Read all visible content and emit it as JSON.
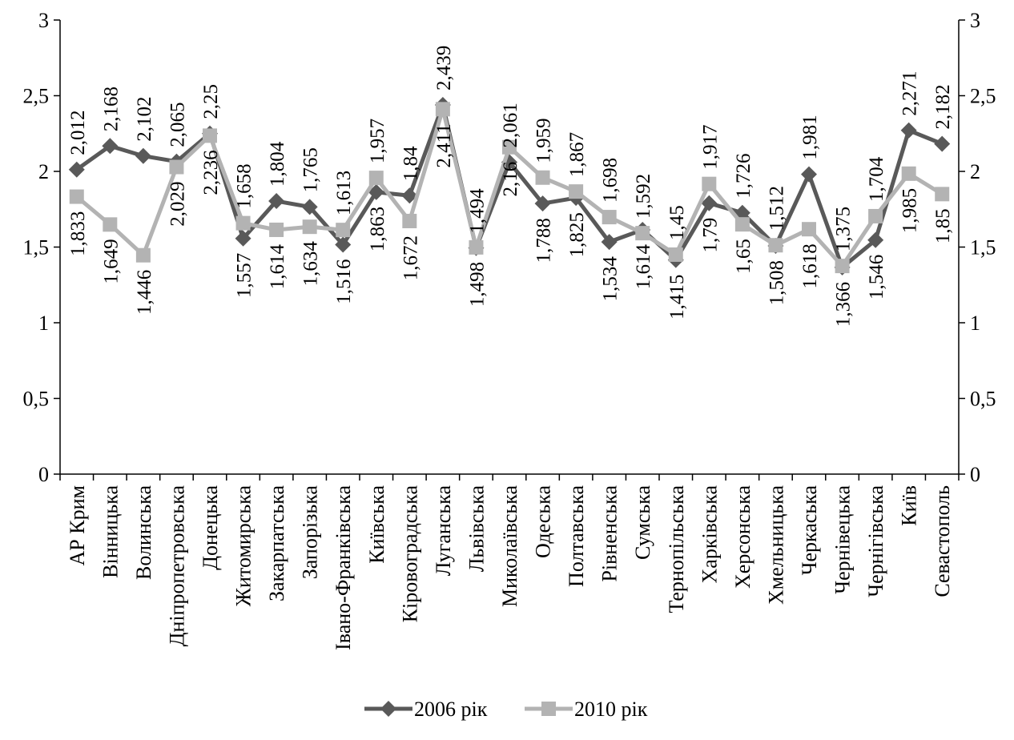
{
  "chart_data": {
    "type": "line",
    "title": "",
    "xlabel": "",
    "ylabel": "",
    "ylim": [
      0,
      3
    ],
    "yticks": [
      "0",
      "0,5",
      "1",
      "1,5",
      "2",
      "2,5",
      "3"
    ],
    "y2ticks": [
      "0",
      "0,5",
      "1",
      "1,5",
      "2",
      "2,5",
      "3"
    ],
    "grid": false,
    "legend_position": "bottom",
    "categories": [
      "АР Крим",
      "Вінницька",
      "Волинська",
      "Дніпропетровська",
      "Донецька",
      "Житомирська",
      "Закарпатська",
      "Запорізька",
      "Івано-Франківська",
      "Київська",
      "Кіровоградська",
      "Луганська",
      "Львівська",
      "Миколаївська",
      "Одеська",
      "Полтавська",
      "Рівненська",
      "Сумська",
      "Тернопільська",
      "Харківська",
      "Херсонська",
      "Хмельницька",
      "Черкаська",
      "Чернівецька",
      "Чернігівська",
      "Київ",
      "Севастополь"
    ],
    "series": [
      {
        "name": "2006 рік",
        "color": "#595959",
        "marker": "diamond",
        "values": [
          2.012,
          2.168,
          2.102,
          2.065,
          2.25,
          1.557,
          1.804,
          1.765,
          1.516,
          1.863,
          1.84,
          2.439,
          1.494,
          2.061,
          1.788,
          1.825,
          1.534,
          1.614,
          1.415,
          1.79,
          1.726,
          1.508,
          1.981,
          1.366,
          1.546,
          2.271,
          2.182
        ],
        "labels": [
          "2,012",
          "2,168",
          "2,102",
          "2,065",
          "2,25",
          "1,557",
          "1,804",
          "1,765",
          "1,516",
          "1,863",
          "1,84",
          "2,439",
          "1,494",
          "2,061",
          "1,788",
          "1,825",
          "1,534",
          "1,614",
          "1,415",
          "1,79",
          "1,726",
          "1,508",
          "1,981",
          "1,366",
          "1,546",
          "2,271",
          "2,182"
        ]
      },
      {
        "name": "2010 рік",
        "color": "#b3b3b3",
        "marker": "square",
        "values": [
          1.833,
          1.649,
          1.446,
          2.029,
          2.236,
          1.658,
          1.614,
          1.634,
          1.613,
          1.957,
          1.672,
          2.411,
          1.498,
          2.16,
          1.959,
          1.867,
          1.698,
          1.592,
          1.45,
          1.917,
          1.65,
          1.512,
          1.618,
          1.375,
          1.704,
          1.985,
          1.85
        ],
        "labels": [
          "1,833",
          "1,649",
          "1,446",
          "2,029",
          "2,236",
          "1,658",
          "1,614",
          "1,634",
          "1,613",
          "1,957",
          "1,672",
          "2,411",
          "1,498",
          "2,16",
          "1,959",
          "1,867",
          "1,698",
          "1,592",
          "1,45",
          "1,917",
          "1,65",
          "1,512",
          "1,618",
          "1,375",
          "1,704",
          "1,985",
          "1,85"
        ]
      }
    ],
    "label_positions": {
      "2006 рік": [
        "above",
        "above",
        "above",
        "above",
        "above",
        "below",
        "above",
        "above",
        "below",
        "below",
        "above",
        "above",
        "above",
        "above",
        "below",
        "below",
        "below",
        "below",
        "below",
        "below",
        "above",
        "below",
        "above",
        "below",
        "below",
        "above",
        "above"
      ],
      "2010 рік": [
        "below",
        "below",
        "below",
        "below",
        "below",
        "above",
        "below",
        "below",
        "above",
        "above",
        "below",
        "below",
        "below",
        "below",
        "above",
        "above",
        "above",
        "above",
        "above",
        "above",
        "below",
        "above",
        "below",
        "above",
        "above",
        "below",
        "below"
      ]
    }
  }
}
